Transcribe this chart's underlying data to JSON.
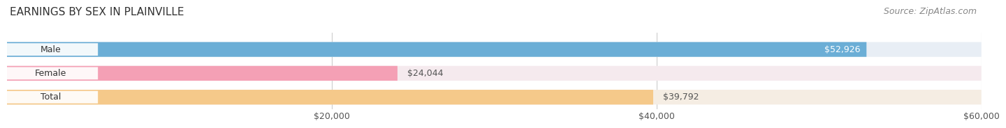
{
  "title": "EARNINGS BY SEX IN PLAINVILLE",
  "source": "Source: ZipAtlas.com",
  "categories": [
    "Male",
    "Female",
    "Total"
  ],
  "values": [
    52926,
    24044,
    39792
  ],
  "bar_colors": [
    "#6baed6",
    "#f4a0b5",
    "#f5c98a"
  ],
  "bar_bg_colors": [
    "#e8eef5",
    "#f5eaee",
    "#f5ede3"
  ],
  "xlim_min": 0,
  "xlim_max": 60000,
  "xticks": [
    20000,
    40000,
    60000
  ],
  "xtick_labels": [
    "$20,000",
    "$40,000",
    "$60,000"
  ],
  "bar_height": 0.62,
  "title_fontsize": 11,
  "source_fontsize": 9,
  "label_fontsize": 9,
  "tick_fontsize": 9,
  "category_fontsize": 9,
  "background_color": "#ffffff",
  "grid_color": "#cccccc"
}
